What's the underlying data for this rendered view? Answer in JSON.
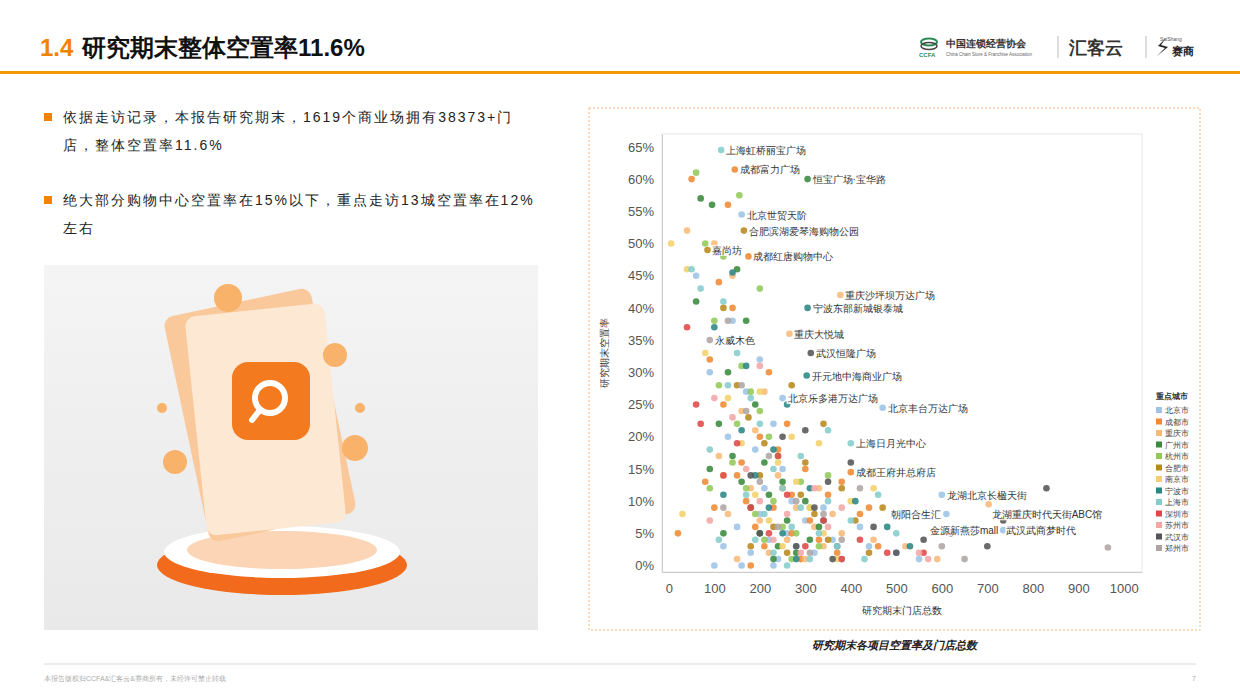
{
  "header": {
    "number": "1.4",
    "title": "研究期末整体空置率11.6%"
  },
  "logos": {
    "ccfa": "中国连锁经营协会",
    "ccfa_en": "China Chain Store & Franchise Association",
    "ccfa_abbr": "CCFA",
    "huikeyun": "汇客云",
    "saishang": "赛商",
    "saishang_en": "SaiShang"
  },
  "bullets": [
    "依据走访记录，本报告研究期末，1619个商业场拥有38373+门店，整体空置率11.6%",
    "绝大部分购物中心空置率在15%以下，重点走访13城空置率在12%左右"
  ],
  "footer": {
    "copyright": "本报告版权归CCFA&汇客云&赛商所有，未经许可禁止转载",
    "page": 7
  },
  "chart_data": {
    "type": "scatter",
    "title": "研究期末各项目空置率及门店总数",
    "x_label": "研究期末门店总数",
    "y_label": "研究期末空置率",
    "legend_title": "重点城市",
    "legend": "right",
    "grid": false,
    "marker": "circle",
    "xlim": [
      -15,
      1040
    ],
    "xticks": [
      0,
      100,
      200,
      300,
      400,
      500,
      600,
      700,
      800,
      900,
      1000
    ],
    "ylim": [
      -1,
      67
    ],
    "yticks": [
      {
        "value": 0,
        "label": "0%"
      },
      {
        "value": 5,
        "label": "5%"
      },
      {
        "value": 10,
        "label": "10%"
      },
      {
        "value": 15,
        "label": "15%"
      },
      {
        "value": 20,
        "label": "20%"
      },
      {
        "value": 25,
        "label": "25%"
      },
      {
        "value": 30,
        "label": "30%"
      },
      {
        "value": 35,
        "label": "35%"
      },
      {
        "value": 40,
        "label": "40%"
      },
      {
        "value": 45,
        "label": "45%"
      },
      {
        "value": 50,
        "label": "50%"
      },
      {
        "value": 55,
        "label": "55%"
      },
      {
        "value": 60,
        "label": "60%"
      },
      {
        "value": 65,
        "label": "65%"
      }
    ],
    "series": [
      {
        "name": "北京市",
        "color": "#9dc3e6",
        "x": [
          160,
          600,
          610,
          735,
          470,
          250,
          120,
          150,
          180,
          200,
          220,
          240,
          260,
          280,
          300,
          320,
          340,
          210,
          190,
          230,
          130,
          170,
          90,
          250,
          270,
          360,
          380,
          420,
          440,
          500,
          520,
          550,
          160,
          100,
          230,
          140,
          60,
          200
        ],
        "values": [
          54.5,
          11,
          8,
          5.5,
          24.5,
          26,
          3,
          6,
          2,
          8,
          4,
          1,
          5,
          3,
          7,
          2,
          9,
          12,
          18,
          22,
          20,
          27,
          30,
          15,
          10,
          4,
          1,
          6,
          3,
          2,
          8,
          1,
          0,
          0,
          0,
          38,
          45,
          32
        ]
      },
      {
        "name": "成都市",
        "color": "#ef8a33",
        "x": [
          145,
          175,
          400,
          50,
          110,
          130,
          90,
          150,
          170,
          190,
          210,
          230,
          250,
          270,
          290,
          310,
          330,
          350,
          370,
          200,
          240,
          120,
          160,
          180,
          420,
          460,
          300,
          80,
          260,
          220,
          140,
          100,
          20,
          270,
          380,
          440
        ],
        "values": [
          61.5,
          48,
          14.5,
          60,
          44,
          56,
          32,
          14,
          10,
          6,
          3,
          9,
          12,
          5,
          1,
          7,
          4,
          11,
          2,
          20,
          18,
          25,
          16,
          0,
          8,
          3,
          15,
          13,
          22,
          30,
          40,
          9,
          5,
          11,
          13,
          9
        ]
      },
      {
        "name": "重庆市",
        "color": "#f7b978",
        "x": [
          377,
          265,
          703,
          40,
          100,
          140,
          160,
          180,
          200,
          220,
          240,
          260,
          280,
          300,
          320,
          340,
          360,
          380,
          150,
          110,
          210,
          190,
          330,
          450,
          520,
          170,
          590,
          130
        ],
        "values": [
          42,
          36,
          9.5,
          52,
          50,
          45,
          24,
          12,
          7,
          2,
          14,
          4,
          9,
          1,
          6,
          3,
          8,
          5,
          1,
          17,
          27,
          21,
          12,
          4,
          3,
          35,
          1,
          8
        ]
      },
      {
        "name": "广州市",
        "color": "#3a8a3e",
        "x": [
          305,
          70,
          95,
          150,
          110,
          140,
          160,
          180,
          200,
          220,
          240,
          260,
          280,
          300,
          130,
          170,
          90,
          210,
          230,
          250,
          310,
          60,
          190,
          330,
          120
        ],
        "values": [
          60,
          57,
          56,
          46,
          22,
          17,
          13,
          9,
          5,
          11,
          3,
          7,
          2,
          10,
          30,
          38,
          15,
          16,
          1,
          13,
          4,
          41,
          25,
          6,
          5
        ]
      },
      {
        "name": "杭州市",
        "color": "#93c95a",
        "x": [
          60,
          155,
          80,
          120,
          200,
          100,
          130,
          160,
          180,
          200,
          220,
          140,
          170,
          190,
          210,
          230,
          250,
          270,
          290,
          310,
          330,
          350,
          150,
          110,
          240,
          280,
          90
        ],
        "values": [
          61,
          57.5,
          50,
          48,
          43,
          38,
          35,
          31,
          27,
          24,
          20,
          16,
          12,
          8,
          4,
          10,
          6,
          1,
          13,
          9,
          3,
          14,
          22,
          28,
          17,
          5,
          12
        ]
      },
      {
        "name": "合肥市",
        "color": "#b8891c",
        "x": [
          165,
          85,
          120,
          150,
          175,
          200,
          230,
          260,
          290,
          320,
          350,
          380,
          410,
          440,
          470,
          180,
          210,
          270,
          300,
          340
        ],
        "values": [
          52,
          49,
          40,
          28,
          23,
          14,
          6,
          2,
          11,
          8,
          4,
          12,
          7,
          2,
          9,
          3,
          19,
          28,
          16,
          22
        ]
      },
      {
        "name": "南京市",
        "color": "#f2d06b",
        "x": [
          5,
          40,
          80,
          130,
          160,
          190,
          220,
          250,
          280,
          310,
          340,
          370,
          400,
          200,
          240,
          120,
          270,
          330,
          450,
          30
        ],
        "values": [
          50,
          46,
          33,
          26,
          19,
          11,
          7,
          3,
          13,
          9,
          5,
          1,
          10,
          27,
          16,
          14,
          20,
          19,
          12,
          8
        ]
      },
      {
        "name": "宁波市",
        "color": "#2b8686",
        "x": [
          305,
          303,
          140,
          100,
          160,
          190,
          220,
          250,
          280,
          310,
          340,
          370,
          410,
          480,
          530,
          120,
          230,
          260,
          170
        ],
        "values": [
          40,
          29.5,
          45.5,
          37,
          21,
          14,
          9,
          5,
          1,
          12,
          7,
          3,
          10,
          6,
          3,
          11,
          18,
          25,
          31
        ]
      },
      {
        "name": "上海市",
        "color": "#86cccc",
        "x": [
          115,
          400,
          50,
          70,
          120,
          150,
          130,
          200,
          90,
          170,
          190,
          210,
          230,
          250,
          270,
          290,
          310,
          330,
          350,
          370,
          400,
          430,
          460,
          500,
          180,
          230,
          290,
          350,
          110,
          260
        ],
        "values": [
          64.5,
          19,
          46,
          43,
          41,
          33,
          28,
          22,
          18,
          11,
          4,
          8,
          2,
          12,
          6,
          9,
          1,
          5,
          10,
          3,
          7,
          1,
          11,
          5,
          26,
          15,
          17,
          21,
          4,
          0
        ]
      },
      {
        "name": "深圳市",
        "color": "#e04848",
        "x": [
          40,
          70,
          60,
          150,
          180,
          220,
          260,
          300,
          340,
          380,
          420,
          480,
          560,
          120,
          240
        ],
        "values": [
          37,
          22,
          25,
          19,
          9,
          5,
          11,
          3,
          7,
          1,
          4,
          2,
          2,
          14,
          17
        ]
      },
      {
        "name": "苏州市",
        "color": "#f3a6a6",
        "x": [
          100,
          140,
          170,
          200,
          230,
          260,
          290,
          320,
          350,
          380,
          550,
          570,
          200,
          90
        ],
        "values": [
          26,
          23,
          15,
          10,
          4,
          8,
          2,
          12,
          6,
          9,
          2,
          1,
          31,
          7
        ]
      },
      {
        "name": "武汉市",
        "color": "#555555",
        "x": [
          312,
          735,
          830,
          300,
          250,
          400,
          350,
          280,
          320,
          360,
          450,
          500,
          560,
          620,
          700,
          200,
          180
        ],
        "values": [
          33,
          7,
          12,
          21,
          20,
          16,
          13,
          3,
          9,
          1,
          6,
          2,
          4,
          5,
          3,
          5,
          14
        ]
      },
      {
        "name": "郑州市",
        "color": "#aea4a4",
        "x": [
          90,
          965,
          130,
          160,
          200,
          240,
          280,
          310,
          340,
          380,
          420,
          170,
          220,
          600,
          650,
          120
        ],
        "values": [
          35,
          2.8,
          38,
          28,
          13,
          6,
          10,
          2,
          8,
          4,
          12,
          24,
          17,
          3,
          1,
          9
        ]
      }
    ],
    "annotations": [
      {
        "text": "上海虹桥丽宝广场",
        "x": 115,
        "y": 64.5
      },
      {
        "text": "成都富力广场",
        "x": 145,
        "y": 61.5
      },
      {
        "text": "恒宝广场·宝华路",
        "x": 305,
        "y": 60
      },
      {
        "text": "北京世贸天阶",
        "x": 160,
        "y": 54.5
      },
      {
        "text": "合肥滨湖爱琴海购物公园",
        "x": 165,
        "y": 52
      },
      {
        "text": "嘉尚坊",
        "x": 85,
        "y": 49
      },
      {
        "text": "成都红唐购物中心",
        "x": 175,
        "y": 48
      },
      {
        "text": "重庆沙坪坝万达广场",
        "x": 377,
        "y": 42
      },
      {
        "text": "宁波东部新城银泰城",
        "x": 305,
        "y": 40
      },
      {
        "text": "重庆大悦城",
        "x": 265,
        "y": 36
      },
      {
        "text": "永威木色",
        "x": 90,
        "y": 35
      },
      {
        "text": "武汉恒隆广场",
        "x": 312,
        "y": 33
      },
      {
        "text": "开元地中海商业广场",
        "x": 303,
        "y": 29.5
      },
      {
        "text": "北京乐多港万达广场",
        "x": 250,
        "y": 26
      },
      {
        "text": "北京丰台万达广场",
        "x": 470,
        "y": 24.5
      },
      {
        "text": "上海日月光中心",
        "x": 400,
        "y": 19
      },
      {
        "text": "成都王府井总府店",
        "x": 400,
        "y": 14.5
      },
      {
        "text": "龙湖北京长楹天街",
        "x": 600,
        "y": 11
      },
      {
        "text": "龙湖重庆时代天街ABC馆",
        "x": 703,
        "y": 9.5
      },
      {
        "text": "朝阳合生汇",
        "x": 610,
        "y": 8
      },
      {
        "text": "武汉武商梦时代",
        "x": 735,
        "y": 7
      },
      {
        "text": "金源新燕莎mall",
        "x": 735,
        "y": 5.5
      }
    ]
  }
}
